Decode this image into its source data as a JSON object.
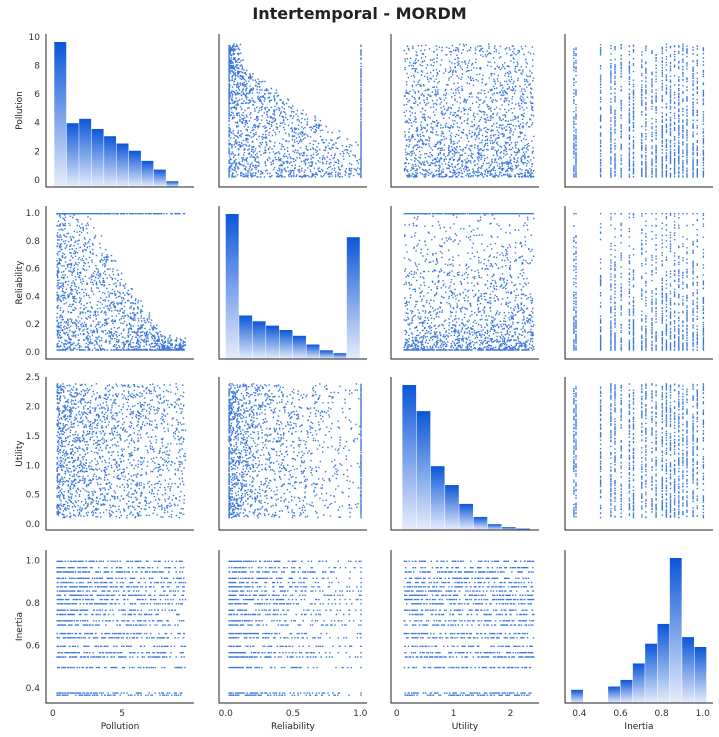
{
  "chart_data": {
    "type": "pairplot",
    "title": "Intertemporal - MORDM",
    "variables": [
      "Pollution",
      "Reliability",
      "Utility",
      "Inertia"
    ],
    "ranges": {
      "Pollution": [
        -0.5,
        10.2
      ],
      "Reliability": [
        -0.05,
        1.05
      ],
      "Utility": [
        -0.1,
        2.5
      ],
      "Inertia": [
        0.33,
        1.05
      ]
    },
    "ticks": {
      "Pollution": [
        0,
        2,
        4,
        6,
        8,
        10
      ],
      "Reliability": [
        0.0,
        0.2,
        0.4,
        0.6,
        0.8,
        1.0
      ],
      "Utility": [
        0.0,
        0.5,
        1.0,
        1.5,
        2.0,
        2.5
      ],
      "Inertia": [
        0.4,
        0.6,
        0.8,
        1.0
      ]
    },
    "x_ticks": {
      "Pollution": [
        0,
        5
      ],
      "Reliability": [
        0.0,
        0.5,
        1.0
      ],
      "Utility": [
        0,
        1,
        2
      ],
      "Inertia": [
        0.4,
        0.6,
        0.8,
        1.0
      ]
    },
    "histograms": {
      "Pollution": {
        "bins": [
          [
            0.1,
            1.0
          ],
          [
            1.0,
            1.9
          ],
          [
            1.9,
            2.8
          ],
          [
            2.8,
            3.7
          ],
          [
            3.7,
            4.6
          ],
          [
            4.6,
            5.5
          ],
          [
            5.5,
            6.4
          ],
          [
            6.4,
            7.3
          ],
          [
            7.3,
            8.2
          ],
          [
            8.2,
            9.1
          ]
        ],
        "counts": [
          100,
          44,
          47,
          40,
          35,
          30,
          25,
          18,
          12,
          4
        ]
      },
      "Reliability": {
        "bins": [
          [
            0.0,
            0.1
          ],
          [
            0.1,
            0.2
          ],
          [
            0.2,
            0.3
          ],
          [
            0.3,
            0.4
          ],
          [
            0.4,
            0.5
          ],
          [
            0.5,
            0.6
          ],
          [
            0.6,
            0.7
          ],
          [
            0.7,
            0.8
          ],
          [
            0.8,
            0.9
          ],
          [
            0.9,
            1.0
          ]
        ],
        "counts": [
          100,
          30,
          26,
          23,
          20,
          16,
          10,
          6,
          4,
          84
        ]
      },
      "Utility": {
        "bins": [
          [
            0.1,
            0.35
          ],
          [
            0.35,
            0.6
          ],
          [
            0.6,
            0.85
          ],
          [
            0.85,
            1.1
          ],
          [
            1.1,
            1.35
          ],
          [
            1.35,
            1.6
          ],
          [
            1.6,
            1.85
          ],
          [
            1.85,
            2.1
          ],
          [
            2.1,
            2.35
          ]
        ],
        "counts": [
          100,
          82,
          44,
          31,
          18,
          9,
          4,
          2,
          1
        ]
      },
      "Inertia": {
        "bins": [
          [
            0.36,
            0.42
          ],
          [
            0.42,
            0.48
          ],
          [
            0.48,
            0.54
          ],
          [
            0.54,
            0.6
          ],
          [
            0.6,
            0.66
          ],
          [
            0.66,
            0.72
          ],
          [
            0.72,
            0.78
          ],
          [
            0.78,
            0.84
          ],
          [
            0.84,
            0.9
          ],
          [
            0.9,
            0.96
          ],
          [
            0.96,
            1.02
          ]
        ],
        "counts": [
          8,
          0,
          0,
          10,
          14,
          24,
          36,
          48,
          88,
          40,
          34
        ]
      }
    },
    "inertia_levels": [
      0.37,
      0.38,
      0.5,
      0.55,
      0.57,
      0.6,
      0.64,
      0.66,
      0.7,
      0.72,
      0.75,
      0.77,
      0.8,
      0.82,
      0.84,
      0.86,
      0.88,
      0.9,
      0.92,
      0.95,
      0.97,
      1.0
    ],
    "series_color": "#1a5fd6",
    "hist_color_top": "#0b56d8",
    "hist_color_bottom": "#e6edfb",
    "grid": false
  }
}
